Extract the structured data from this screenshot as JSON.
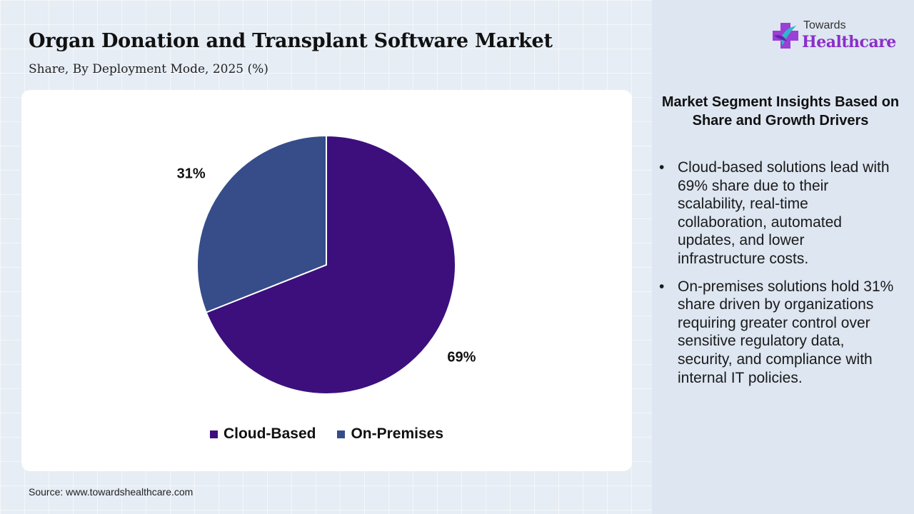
{
  "header": {
    "title": "Organ Donation and Transplant Software Market",
    "subtitle": "Share, By Deployment Mode, 2025 (%)"
  },
  "chart_data": {
    "type": "pie",
    "title": "Organ Donation and Transplant Software Market",
    "subtitle": "Share, By Deployment Mode, 2025 (%)",
    "categories": [
      "Cloud-Based",
      "On-Premises"
    ],
    "values": [
      69,
      31
    ],
    "labels": [
      "69%",
      "31%"
    ],
    "colors": [
      "#3c0f7d",
      "#364d8a"
    ],
    "legend_position": "bottom-center"
  },
  "legend": {
    "items": [
      {
        "label": "Cloud-Based",
        "color": "#3c0f7d"
      },
      {
        "label": "On-Premises",
        "color": "#364d8a"
      }
    ]
  },
  "source": "Source: www.towardshealthcare.com",
  "logo": {
    "top_text": "Towards",
    "main_text": "Healthcare",
    "icon": "medical-cross-icon",
    "brand_color": "#8b2fc9"
  },
  "insights": {
    "heading": "Market Segment Insights Based on Share and Growth Drivers",
    "bullet_glyph": "•",
    "items": [
      "Cloud-based solutions lead with 69% share due to their scalability, real-time collaboration, automated updates, and lower infrastructure costs.",
      "On-premises solutions hold 31% share driven by organizations requiring greater control over sensitive regulatory data, security, and compliance with internal IT policies."
    ]
  }
}
